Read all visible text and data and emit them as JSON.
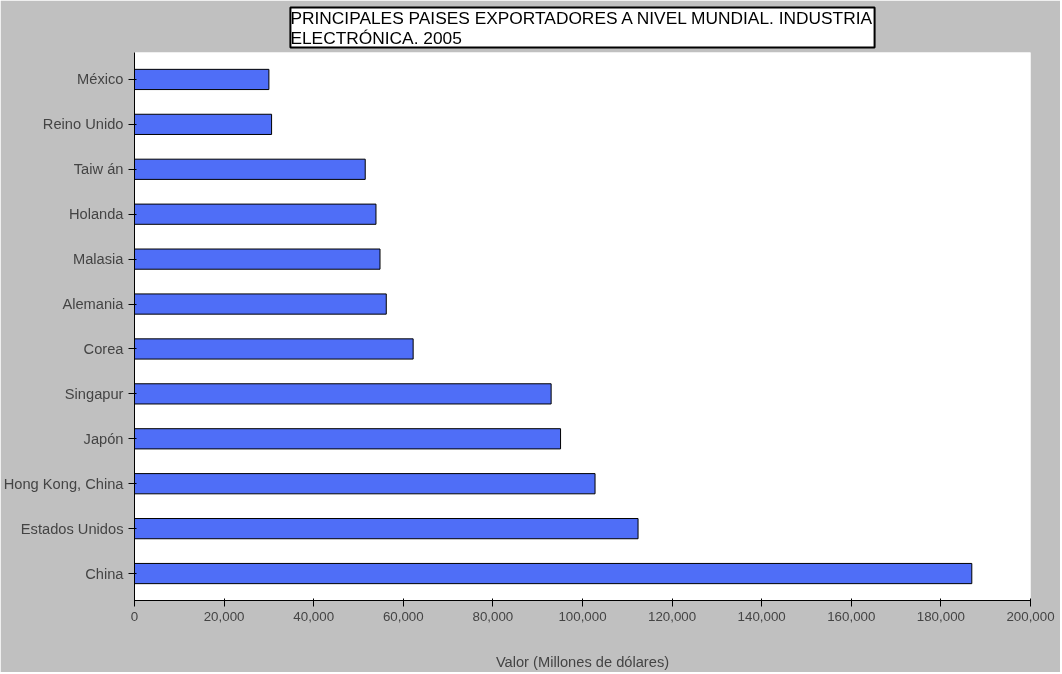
{
  "chart_data": {
    "type": "bar",
    "orientation": "horizontal",
    "title": "PRINCIPALES PAISES EXPORTADORES A NIVEL MUNDIAL. INDUSTRIA ELECTRÓNICA. 2005",
    "xlabel": "Valor (Millones de dólares)",
    "categories": [
      "México",
      "Reino Unido",
      "Taiw án",
      "Holanda",
      "Malasia",
      "Alemania",
      "Corea",
      "Singapur",
      "Japón",
      "Hong Kong, China",
      "Estados Unidos",
      "China"
    ],
    "values": [
      30000,
      30600,
      51500,
      53900,
      54800,
      56200,
      62200,
      93000,
      95100,
      102800,
      112400,
      186900
    ],
    "color": "#4f6ef7",
    "xlim": [
      0,
      200000
    ],
    "xticks": [
      0,
      {
        "value": 20000,
        "label": "20,000"
      },
      {
        "value": 40000,
        "label": "40,000"
      },
      {
        "value": 60000,
        "label": "60,000"
      },
      {
        "value": 80000,
        "label": "80,000"
      },
      {
        "value": 100000,
        "label": "100,000"
      },
      {
        "value": 120000,
        "label": "120,000"
      },
      {
        "value": 140000,
        "label": "140,000"
      },
      {
        "value": 160000,
        "label": "160,000"
      },
      {
        "value": 180000,
        "label": "180,000"
      },
      {
        "value": 200000,
        "label": "200,000"
      }
    ],
    "grid": false
  }
}
